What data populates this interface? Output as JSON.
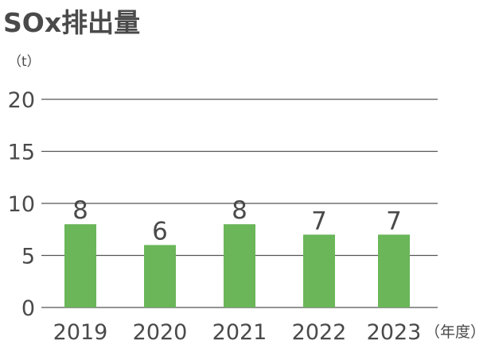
{
  "chart_data": {
    "type": "bar",
    "title": "SOx排出量",
    "ylabel": "（t）",
    "xlabel": "（年度）",
    "categories": [
      "2019",
      "2020",
      "2021",
      "2022",
      "2023"
    ],
    "values": [
      8,
      6,
      8,
      7,
      7
    ],
    "ylim": [
      0,
      20
    ],
    "yticks": [
      0,
      5,
      10,
      15,
      20
    ],
    "grid": true,
    "bar_color": "#6ab659",
    "grid_color": "#555555",
    "data_labels": [
      "8",
      "6",
      "8",
      "7",
      "7"
    ]
  }
}
